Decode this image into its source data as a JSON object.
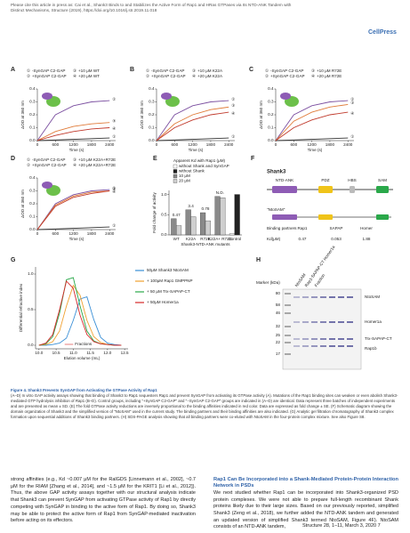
{
  "header": {
    "citation": "Please cite this article in press as: Cai et al., Shank3 Binds to and Stabilizes the Active Form of Rap1 and HRas GTPases via Its NTD-ANK Tandem with Distinct Mechanisms, Structure (2019), https://doi.org/10.1016/j.str.2019.11.018",
    "logo": "CellPress"
  },
  "figure": {
    "panels": [
      {
        "letter": "A",
        "xlabel": "Time (s)",
        "ylabel": "ΔOD at 360 nm",
        "xlim": [
          0,
          2600
        ],
        "ylim": [
          0,
          0.4
        ],
        "xticks": [
          0,
          600,
          1200,
          1800,
          2400
        ],
        "yticks": [
          {
            "value": 0,
            "label": "0.0"
          },
          0.1,
          0.2,
          0.3,
          0.4
        ],
        "x": [
          0,
          600,
          1200,
          1800,
          2400
        ],
        "series": [
          {
            "tag": "①",
            "name": "-SynGAP C2-GAP",
            "color": "#333333",
            "values": [
              0,
              0.005,
              0.01,
              0.015,
              0.02
            ]
          },
          {
            "tag": "②",
            "name": "+SynGAP C2-GAP",
            "color": "#7b4fa0",
            "values": [
              0,
              0.2,
              0.27,
              0.3,
              0.31
            ]
          },
          {
            "tag": "③",
            "name": "+10 μM WT",
            "color": "#e07b39",
            "values": [
              0,
              0.07,
              0.11,
              0.13,
              0.14
            ]
          },
          {
            "tag": "④",
            "name": "+20 μM WT",
            "color": "#c0392b",
            "values": [
              0,
              0.04,
              0.07,
              0.09,
              0.1
            ]
          }
        ]
      },
      {
        "letter": "B",
        "xlabel": "Time (s)",
        "ylabel": "ΔOD at 360 nm",
        "xlim": [
          0,
          2600
        ],
        "ylim": [
          0,
          0.4
        ],
        "xticks": [
          0,
          600,
          1200,
          1800,
          2400
        ],
        "yticks": [
          {
            "value": 0,
            "label": "0.0"
          },
          0.1,
          0.2,
          0.3,
          0.4
        ],
        "x": [
          0,
          600,
          1200,
          1800,
          2400
        ],
        "series": [
          {
            "tag": "①",
            "name": "-SynGAP C2-GAP",
            "color": "#333333",
            "values": [
              0,
              0.005,
              0.01,
              0.015,
              0.02
            ]
          },
          {
            "tag": "②",
            "name": "+SynGAP C2-GAP",
            "color": "#7b4fa0",
            "values": [
              0,
              0.2,
              0.27,
              0.3,
              0.31
            ]
          },
          {
            "tag": "③",
            "name": "+10 μM K22A",
            "color": "#e07b39",
            "values": [
              0,
              0.13,
              0.2,
              0.24,
              0.26
            ]
          },
          {
            "tag": "④",
            "name": "+20 μM K22A",
            "color": "#c0392b",
            "values": [
              0,
              0.1,
              0.16,
              0.2,
              0.22
            ]
          }
        ]
      },
      {
        "letter": "C",
        "xlabel": "Time (s)",
        "ylabel": "ΔOD at 360 nm",
        "xlim": [
          0,
          2600
        ],
        "ylim": [
          0,
          0.4
        ],
        "xticks": [
          0,
          600,
          1200,
          1800,
          2400
        ],
        "yticks": [
          {
            "value": 0,
            "label": "0.0"
          },
          0.1,
          0.2,
          0.3,
          0.4
        ],
        "x": [
          0,
          600,
          1200,
          1800,
          2400
        ],
        "series": [
          {
            "tag": "①",
            "name": "-SynGAP C2-GAP",
            "color": "#333333",
            "values": [
              0,
              0.005,
              0.01,
              0.015,
              0.02
            ]
          },
          {
            "tag": "②",
            "name": "+SynGAP C2-GAP",
            "color": "#7b4fa0",
            "values": [
              0,
              0.2,
              0.27,
              0.3,
              0.31
            ]
          },
          {
            "tag": "③",
            "name": "+10 μM R72E",
            "color": "#e07b39",
            "values": [
              0,
              0.15,
              0.22,
              0.26,
              0.28
            ]
          },
          {
            "tag": "④",
            "name": "+20 μM R72E",
            "color": "#c0392b",
            "values": [
              0,
              0.1,
              0.16,
              0.2,
              0.22
            ]
          }
        ]
      },
      {
        "letter": "D",
        "xlabel": "Time (s)",
        "ylabel": "ΔOD at 360 nm",
        "xlim": [
          0,
          2600
        ],
        "ylim": [
          0,
          0.4
        ],
        "xticks": [
          0,
          600,
          1200,
          1800,
          2400
        ],
        "yticks": [
          {
            "value": 0,
            "label": "0.0"
          },
          0.1,
          0.2,
          0.3,
          0.4
        ],
        "x": [
          0,
          600,
          1200,
          1800,
          2400
        ],
        "series": [
          {
            "tag": "①",
            "name": "-SynGAP C2-GAP",
            "color": "#333333",
            "values": [
              0,
              0.005,
              0.01,
              0.015,
              0.02
            ]
          },
          {
            "tag": "②",
            "name": "+SynGAP C2-GAP",
            "color": "#7b4fa0",
            "values": [
              0,
              0.2,
              0.27,
              0.3,
              0.31
            ]
          },
          {
            "tag": "③",
            "name": "+10 μM K22A+R72E",
            "color": "#e07b39",
            "values": [
              0,
              0.19,
              0.26,
              0.29,
              0.3
            ]
          },
          {
            "tag": "④",
            "name": "+20 μM K22A+R72E",
            "color": "#c0392b",
            "values": [
              0,
              0.18,
              0.25,
              0.28,
              0.3
            ]
          }
        ]
      }
    ],
    "panel_e": {
      "letter": "E",
      "title": "Apparent Kd with Rap1 (μM)",
      "ylabel": "Fold change of activity",
      "xlabel": "Shank3-NTD-ANK mutants",
      "categories": [
        "WT",
        "K22A",
        "R72E",
        "K22A+ R72E",
        "Control"
      ],
      "ylim": [
        0,
        1.1
      ],
      "yticks": [
        {
          "value": 0,
          "label": "0.0"
        },
        0.5,
        {
          "value": 1,
          "label": "1.0"
        }
      ],
      "annotations": [
        "0.47",
        "3.4",
        "0.78",
        "N.D."
      ],
      "series": [
        {
          "name": "without Shank and SynGAP",
          "color": "#ffffff",
          "values": [
            null,
            null,
            null,
            null,
            0.03
          ]
        },
        {
          "name": "without Shank",
          "color": "#222222",
          "values": [
            null,
            null,
            null,
            null,
            1.0
          ]
        },
        {
          "name": "10 μM",
          "color": "#8a8a8a",
          "values": [
            0.4,
            0.62,
            0.55,
            0.95,
            null
          ]
        },
        {
          "name": "20 μM",
          "color": "#cfcfcf",
          "values": [
            0.23,
            0.45,
            0.35,
            0.92,
            null
          ]
        }
      ]
    },
    "panel_f": {
      "letter": "F",
      "protein": "Shank3",
      "domains": [
        "NTD-ANK",
        "PDZ",
        "HBS",
        "SAM"
      ],
      "construct": "\"NtoSAM\"",
      "row_partners": "Binding partners",
      "partners": [
        "Rap1",
        "SAPAP",
        "Homer"
      ],
      "row_kd": "Kd(μM)",
      "kd": [
        0.47,
        0.053,
        1.88
      ]
    },
    "panel_g": {
      "letter": "G",
      "xlabel": "Elution volume (mL)",
      "ylabel": "Differential refractive index",
      "xlim": [
        9.9,
        12.6
      ],
      "ylim": [
        -0.05,
        1.1
      ],
      "xticks": [
        {
          "value": 10,
          "label": "10.0"
        },
        10.5,
        {
          "value": 11,
          "label": "11.0"
        },
        11.5,
        {
          "value": 12,
          "label": "12.0"
        },
        12.5
      ],
      "yticks": [
        {
          "value": 0,
          "label": "0.0"
        },
        0.5,
        {
          "value": 1,
          "label": "1.0"
        }
      ],
      "annotation": "Fractions",
      "x": [
        10.0,
        10.2,
        10.4,
        10.6,
        10.8,
        11.0,
        11.2,
        11.4,
        11.6,
        11.8,
        12.0,
        12.2,
        12.4
      ],
      "series": [
        {
          "name": "50μM Shank3 NtoSAM",
          "color": "#3a8fd6",
          "values": [
            0,
            0,
            0.01,
            0.03,
            0.1,
            0.35,
            0.65,
            0.68,
            0.36,
            0.11,
            0.03,
            0.01,
            0
          ]
        },
        {
          "name": "+ 100μM Rap1 GMPPNP",
          "color": "#f0a030",
          "values": [
            0,
            0.01,
            0.05,
            0.2,
            0.55,
            0.84,
            0.7,
            0.35,
            0.12,
            0.04,
            0.01,
            0,
            0
          ]
        },
        {
          "name": "+ 50 μM Trx-SAPAP-CT",
          "color": "#2aa84a",
          "values": [
            0,
            0.02,
            0.12,
            0.45,
            0.92,
            0.95,
            0.55,
            0.2,
            0.06,
            0.02,
            0.01,
            0,
            0
          ]
        },
        {
          "name": "+ 50μM Homer1a",
          "color": "#d62828",
          "values": [
            0,
            0.03,
            0.15,
            0.5,
            0.9,
            0.8,
            0.42,
            0.15,
            0.05,
            0.02,
            0.01,
            0,
            0
          ]
        }
      ]
    },
    "panel_h": {
      "letter": "H",
      "marker_title": "Marker (kDa)",
      "markers": [
        80,
        58,
        46,
        32,
        25,
        22,
        17
      ],
      "lanes": [
        "NtoSAM",
        "Rap1-SAPAP-CT Homer1a",
        "Fraction"
      ],
      "bands": [
        "NtoSAM",
        "Homer1a",
        "Trx-SAPAP-CT",
        "Rap1b"
      ]
    }
  },
  "caption": {
    "title": "Figure 4. Shank3 Prevents SynGAP from Activating the GTPase Activity of Rap1",
    "text": "(A–D) In vitro GAP activity assays showing that binding of Shank3 to Rap1 sequesters Rap1 and prevent SynGAP from activating its GTPase activity (A). Mutations of the Rap1 binding sites can weaken or even abolish Shank3-mediated GTP hydrolysis inhibition of Rap1 (B–D). Control groups, including \"+SynGAP C2-GAP\" and \"−SynGAP C2-GAP\" groups are indicated in (A–D) are identical. Data represent three batches of independent experiments and are presented as mean ± SD. (E) The fold GTPase activity reductions are inversely proportional to the binding affinities indicated in red color. Data are expressed as fold change ± SE. (F) Schematic diagram showing the domain organization of Shank3 and the simplified version of \"NtoSAM\" used in the current study. The binding partners and their binding affinities are also indicated. (G) Analytic gel filtration chromatography of Shank3 complex formation upon sequential additions of Shank3 binding partners. (H) SDS-PAGE analysis showing that all binding partners were co-eluted with NtoSAM in the four-protein complex mixture. See also Figure S8."
  },
  "body": {
    "left": "strong affinities (e.g., Kd ~0.007 μM for the RalGDS [Linnemann et al., 2002], ~0.7 μM for the RIAM [Zhang et al., 2014], and ~1.5 μM for the KRIT1 [Li et al., 2012]). Thus, the above GAP activity assays together with our structural analysis indicate that Shank3 can prevent SynGAP from activating GTPase activity of Rap1 by directly competing with SynGAP in binding to the active form of Rap1. By doing so, Shank3 may be able to protect the active form of Rap1 from SynGAP-mediated inactivation before acting on its effectors.",
    "heading": "Rap1 Can Be Incorporated into a Shank-Mediated Protein-Protein Interaction Network in PSDs",
    "right": "We next studied whether Rap1 can be incorporated into Shank3-organized PSD protein complexes. We were not able to prepare full-length recombinant Shank proteins likely due to their large sizes. Based on our previously reported, simplified Shank3 (Zeng et al., 2018), we further added the NTD-ANK tandem and generated an updated version of simplified Shank3 termed NtoSAM, Figure 4F). NtoSAM consists of an NTD-ANK tandem,"
  },
  "footer": "Structure 28, 1–11, March 3, 2020 7"
}
